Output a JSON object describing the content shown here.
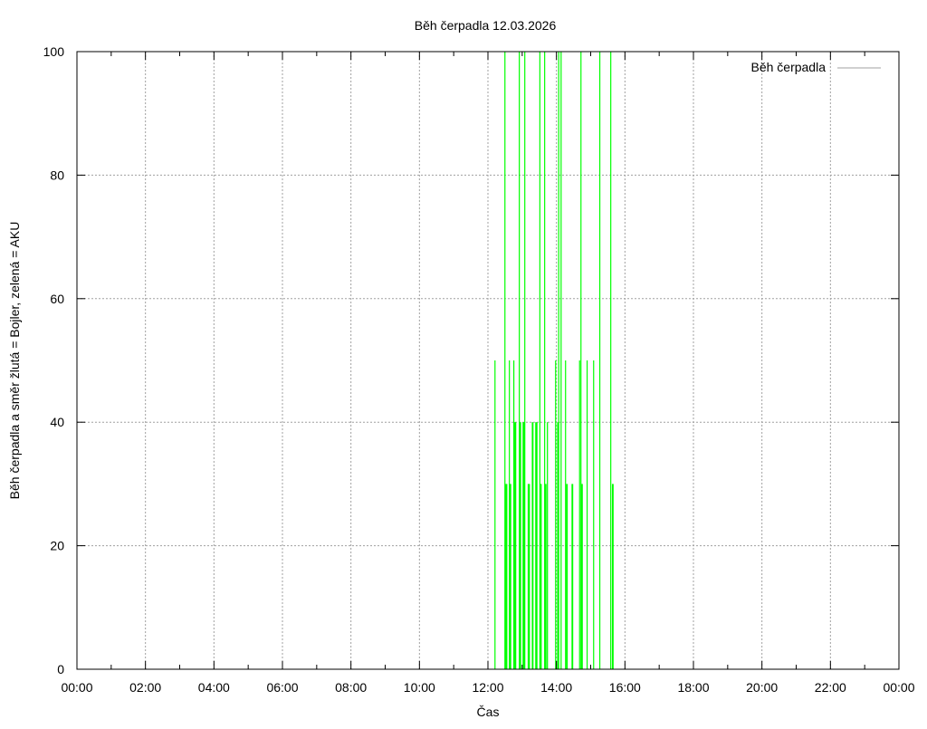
{
  "chart_data": {
    "type": "bar",
    "title": "Běh čerpadla 12.03.2026",
    "xlabel": "Čas",
    "ylabel": "Běh čerpadla a směr žlutá = Bojler, zelená = AKU",
    "xlim_hours": [
      0,
      24
    ],
    "ylim": [
      0,
      100
    ],
    "grid": true,
    "x_ticks": [
      "00:00",
      "02:00",
      "04:00",
      "06:00",
      "08:00",
      "10:00",
      "12:00",
      "14:00",
      "16:00",
      "18:00",
      "20:00",
      "22:00",
      "00:00"
    ],
    "y_ticks": [
      "0",
      "20",
      "40",
      "60",
      "80",
      "100"
    ],
    "legend": {
      "label": "Běh čerpadla",
      "position": "top-right",
      "color": "#a0a0a0"
    },
    "series_color": "#00ff00",
    "events": [
      {
        "t": 12.19,
        "v": 50,
        "dur_min": 1
      },
      {
        "t": 12.48,
        "v": 100,
        "dur_min": 1
      },
      {
        "t": 12.5,
        "v": 30,
        "dur_min": 4
      },
      {
        "t": 12.61,
        "v": 50,
        "dur_min": 1
      },
      {
        "t": 12.63,
        "v": 30,
        "dur_min": 3
      },
      {
        "t": 12.74,
        "v": 50,
        "dur_min": 1
      },
      {
        "t": 12.76,
        "v": 40,
        "dur_min": 4
      },
      {
        "t": 12.9,
        "v": 100,
        "dur_min": 1
      },
      {
        "t": 12.92,
        "v": 40,
        "dur_min": 3
      },
      {
        "t": 13.01,
        "v": 40,
        "dur_min": 4
      },
      {
        "t": 13.06,
        "v": 100,
        "dur_min": 1
      },
      {
        "t": 13.16,
        "v": 30,
        "dur_min": 4
      },
      {
        "t": 13.28,
        "v": 40,
        "dur_min": 3
      },
      {
        "t": 13.38,
        "v": 40,
        "dur_min": 4
      },
      {
        "t": 13.5,
        "v": 100,
        "dur_min": 1
      },
      {
        "t": 13.52,
        "v": 30,
        "dur_min": 3
      },
      {
        "t": 13.64,
        "v": 100,
        "dur_min": 1
      },
      {
        "t": 13.66,
        "v": 30,
        "dur_min": 3
      },
      {
        "t": 13.72,
        "v": 40,
        "dur_min": 2
      },
      {
        "t": 13.96,
        "v": 50,
        "dur_min": 1
      },
      {
        "t": 14.02,
        "v": 40,
        "dur_min": 1
      },
      {
        "t": 14.05,
        "v": 100,
        "dur_min": 1
      },
      {
        "t": 14.12,
        "v": 100,
        "dur_min": 1
      },
      {
        "t": 14.25,
        "v": 50,
        "dur_min": 1
      },
      {
        "t": 14.28,
        "v": 30,
        "dur_min": 3
      },
      {
        "t": 14.44,
        "v": 30,
        "dur_min": 3
      },
      {
        "t": 14.66,
        "v": 50,
        "dur_min": 1
      },
      {
        "t": 14.7,
        "v": 100,
        "dur_min": 1
      },
      {
        "t": 14.72,
        "v": 30,
        "dur_min": 3
      },
      {
        "t": 14.88,
        "v": 50,
        "dur_min": 1
      },
      {
        "t": 15.07,
        "v": 50,
        "dur_min": 1
      },
      {
        "t": 15.25,
        "v": 100,
        "dur_min": 1
      },
      {
        "t": 15.57,
        "v": 100,
        "dur_min": 1
      },
      {
        "t": 15.62,
        "v": 30,
        "dur_min": 3
      }
    ]
  }
}
